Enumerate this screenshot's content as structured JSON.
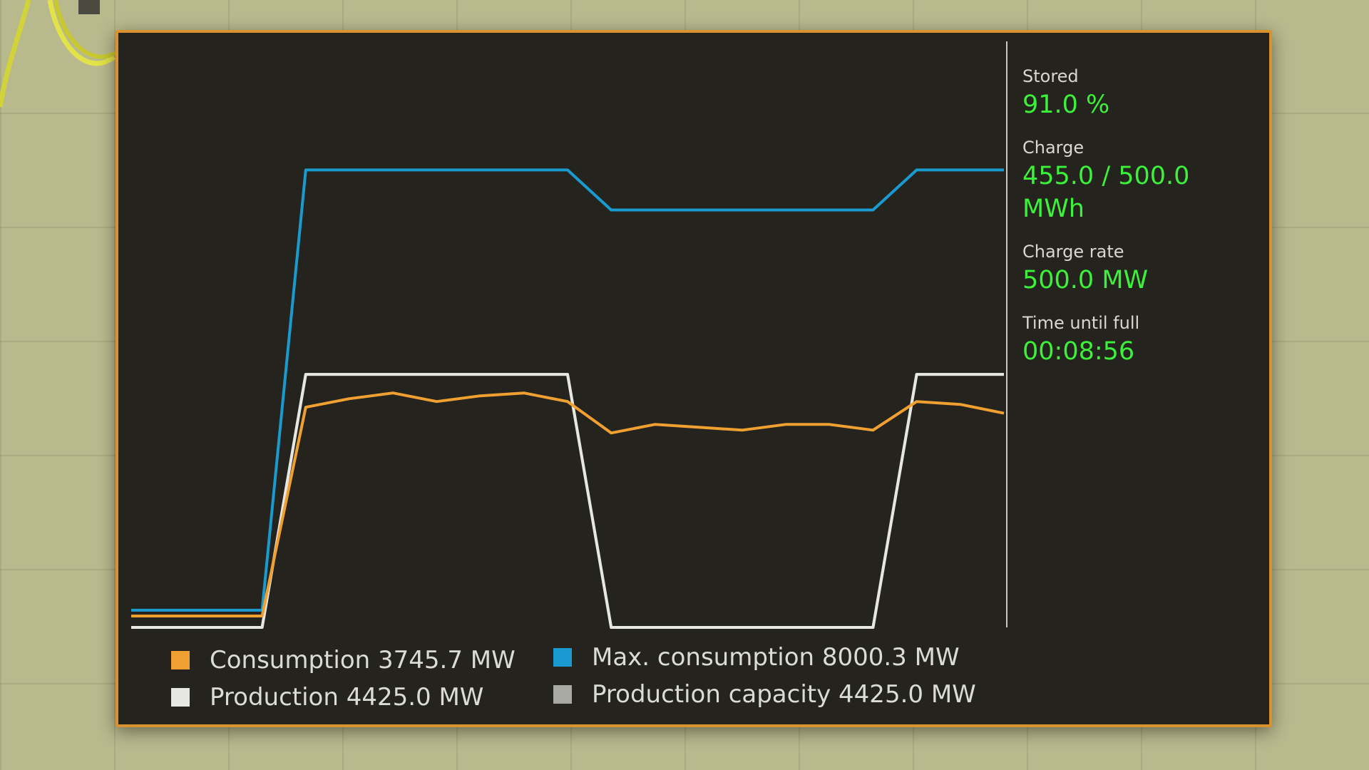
{
  "stats": [
    {
      "label": "Stored",
      "value": "91.0 %"
    },
    {
      "label": "Charge",
      "value": "455.0 / 500.0 MWh"
    },
    {
      "label": "Charge rate",
      "value": "500.0 MW"
    },
    {
      "label": "Time until full",
      "value": "00:08:56"
    }
  ],
  "legend": [
    {
      "text": "Consumption 3745.7 MW",
      "color": "#f0a030"
    },
    {
      "text": "Production 4425.0 MW",
      "color": "#e6e6e2"
    },
    {
      "text": "Max. consumption 8000.3 MW",
      "color": "#1a9bd0"
    },
    {
      "text": "Production capacity 4425.0 MW",
      "color": "#a9a9a4"
    }
  ],
  "colors": {
    "consumption": "#f0a030",
    "production": "#e6e6e2",
    "max_consumption": "#1a9bd0",
    "production_capacity": "#a9a9a4",
    "panel_border": "#d9922e",
    "value_green": "#3df03a"
  },
  "chart_data": {
    "type": "line",
    "xlabel": "",
    "ylabel": "",
    "x": [
      0,
      5,
      10,
      15,
      20,
      25,
      30,
      35,
      40,
      45,
      50,
      55,
      60,
      65,
      70,
      75,
      80,
      85,
      90,
      95,
      100
    ],
    "ylim": [
      0,
      10000
    ],
    "grid": false,
    "series": [
      {
        "name": "Max. consumption",
        "values": [
          300,
          300,
          300,
          300,
          8000,
          8000,
          8000,
          8000,
          8000,
          8000,
          8000,
          7300,
          7300,
          7300,
          7300,
          7300,
          7300,
          7300,
          8000,
          8000,
          8000
        ]
      },
      {
        "name": "Production capacity",
        "values": [
          0,
          0,
          0,
          0,
          4425,
          4425,
          4425,
          4425,
          4425,
          4425,
          4425,
          0,
          0,
          0,
          0,
          0,
          0,
          0,
          4425,
          4425,
          4425
        ]
      },
      {
        "name": "Production",
        "values": [
          0,
          0,
          0,
          0,
          4425,
          4425,
          4425,
          4425,
          4425,
          4425,
          4425,
          0,
          0,
          0,
          0,
          0,
          0,
          0,
          4425,
          4425,
          4425
        ]
      },
      {
        "name": "Consumption",
        "values": [
          200,
          200,
          200,
          200,
          3850,
          4000,
          4100,
          3950,
          4050,
          4100,
          3950,
          3400,
          3550,
          3500,
          3450,
          3550,
          3550,
          3450,
          3950,
          3900,
          3745.7
        ]
      }
    ]
  }
}
